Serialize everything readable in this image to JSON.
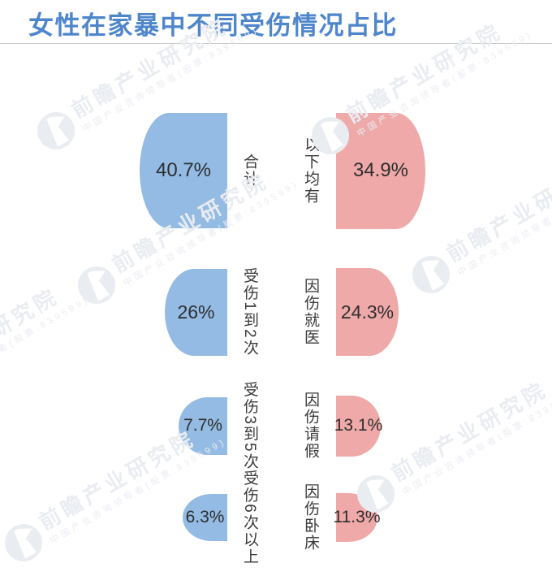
{
  "title": "女性在家暴中不同受伤情况占比",
  "chart_data": {
    "type": "bar",
    "variant": "pictorial-semicircle-bars",
    "title": "女性在家暴中不同受伤情况占比",
    "legend_position": "none",
    "axes": "none",
    "orientation": "paired-horizontal",
    "series": [
      {
        "side": "left",
        "color": "#94BBE3",
        "data": [
          {
            "category": "合计",
            "value": 40.7,
            "label": "40.7%"
          },
          {
            "category": "受伤1到2次",
            "value": 26,
            "label": "26%"
          },
          {
            "category": "受伤3到5次",
            "value": 7.7,
            "label": "7.7%"
          },
          {
            "category": "受伤6次以上",
            "value": 6.3,
            "label": "6.3%"
          }
        ]
      },
      {
        "side": "right",
        "color": "#EFA9A9",
        "data": [
          {
            "category": "以下均有",
            "value": 34.9,
            "label": "34.9%"
          },
          {
            "category": "因伤就医",
            "value": 24.3,
            "label": "24.3%"
          },
          {
            "category": "因伤请假",
            "value": 13.1,
            "label": "13.1%"
          },
          {
            "category": "因伤卧床",
            "value": 11.3,
            "label": "11.3%"
          }
        ]
      }
    ]
  },
  "watermark": {
    "brand": "前瞻产业研究院",
    "tagline": "中国产业咨询领导者(股票:839599)",
    "logo": "qianzhan-logo-icon"
  },
  "colors": {
    "title": "#4E86CB",
    "left_bar": "#94BBE3",
    "right_bar": "#EFA9A9",
    "value_text": "#2E2E2E",
    "category_text": "#3A3A3A",
    "divider": "#C9C9C9",
    "watermark": "#E9ECF1"
  }
}
